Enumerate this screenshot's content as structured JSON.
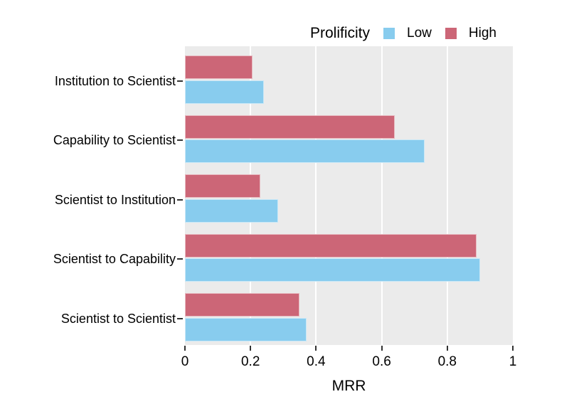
{
  "chart_data": {
    "type": "bar",
    "orientation": "horizontal",
    "legend_title": "Prolificity",
    "xlabel": "MRR",
    "categories": [
      "Institution to Scientist",
      "Capability to Scientist",
      "Scientist to Institution",
      "Scientist to Capability",
      "Scientist to Scientist"
    ],
    "series": [
      {
        "name": "Low",
        "color": "#88CCEE",
        "values": [
          0.24,
          0.73,
          0.285,
          0.9,
          0.37
        ]
      },
      {
        "name": "High",
        "color": "#CC6677",
        "values": [
          0.205,
          0.64,
          0.23,
          0.89,
          0.35
        ]
      }
    ],
    "x_ticks": [
      0,
      0.2,
      0.4,
      0.6,
      0.8,
      1
    ],
    "x_tick_labels": [
      "0",
      "0.2",
      "0.4",
      "0.6",
      "0.8",
      "1"
    ],
    "xlim": [
      0,
      1
    ],
    "grid": true,
    "legend_position": "top-right",
    "panel_background": "#EBEBEB",
    "gridline_color": "#FFFFFF",
    "note": "Within each category group the High bar is drawn above the Low bar"
  }
}
